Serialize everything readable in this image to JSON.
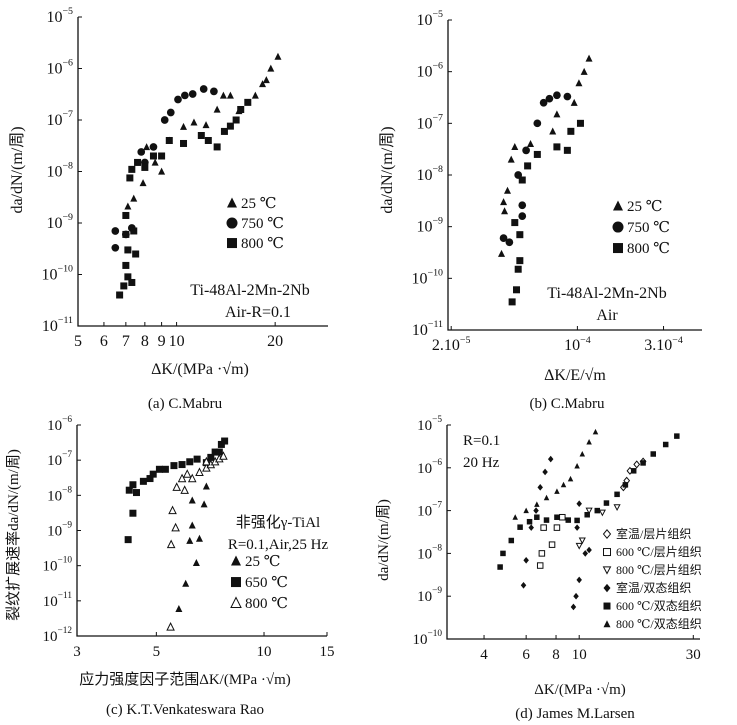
{
  "chart_data": [
    {
      "id": "a",
      "type": "scatter",
      "caption": "(a) C.Mabru",
      "xlabel": "ΔK/(MPa ·√m)",
      "ylabel": "da/dN/(m/周)",
      "xscale": "log",
      "yscale": "log",
      "xlim": [
        5,
        29
      ],
      "ylim": [
        1e-11,
        1e-05
      ],
      "xticks": [
        {
          "v": 5,
          "base": "5"
        },
        {
          "v": 6,
          "base": "6"
        },
        {
          "v": 7,
          "base": "7"
        },
        {
          "v": 8,
          "base": "8"
        },
        {
          "v": 9,
          "base": "9"
        },
        {
          "v": 10,
          "base": "10"
        },
        {
          "v": 20,
          "base": "20"
        }
      ],
      "yticks": [
        -11,
        -10,
        -9,
        -8,
        -7,
        -6,
        -5
      ],
      "annotations": [
        "Ti-48Al-2Mn-2Nb",
        "Air-R=0.1"
      ],
      "legend_position": "center-right",
      "series": [
        {
          "name": "25 ℃",
          "marker": "triangle-filled",
          "points": [
            [
              7.1,
              2.1e-09
            ],
            [
              7.4,
              3e-09
            ],
            [
              7.9,
              6e-09
            ],
            [
              8.1,
              3e-08
            ],
            [
              8.6,
              1.5e-08
            ],
            [
              9,
              1e-08
            ],
            [
              9.5,
              4e-08
            ],
            [
              10.5,
              7.4e-08
            ],
            [
              11.3,
              9e-08
            ],
            [
              12.3,
              8e-08
            ],
            [
              13.3,
              1.6e-07
            ],
            [
              13.9,
              3e-07
            ],
            [
              14.6,
              3e-07
            ],
            [
              15.5,
              1.5e-07
            ],
            [
              17.4,
              3e-07
            ],
            [
              18.3,
              5e-07
            ],
            [
              18.8,
              6e-07
            ],
            [
              19.4,
              1e-06
            ],
            [
              20.4,
              1.7e-06
            ]
          ]
        },
        {
          "name": "750 ℃",
          "marker": "circle-filled",
          "points": [
            [
              6.5,
              7e-10
            ],
            [
              6.5,
              3.3e-10
            ],
            [
              7.0,
              6e-10
            ],
            [
              7.3,
              8e-10
            ],
            [
              7.8,
              2.4e-08
            ],
            [
              8.0,
              1.5e-08
            ],
            [
              8.5,
              3e-08
            ],
            [
              9.2,
              1e-07
            ],
            [
              9.6,
              1.4e-07
            ],
            [
              10.1,
              2.5e-07
            ],
            [
              10.6,
              3e-07
            ],
            [
              11.2,
              3.2e-07
            ],
            [
              12.1,
              4e-07
            ],
            [
              13,
              3.6e-07
            ]
          ]
        },
        {
          "name": "800 ℃",
          "marker": "square-filled",
          "points": [
            [
              6.7,
              4e-11
            ],
            [
              6.9,
              6e-11
            ],
            [
              7.1,
              9e-11
            ],
            [
              7.3,
              7e-11
            ],
            [
              7.0,
              1.5e-10
            ],
            [
              7.1,
              3e-10
            ],
            [
              7.5,
              2.5e-10
            ],
            [
              7.0,
              6e-10
            ],
            [
              7.4,
              7e-10
            ],
            [
              7.0,
              1.4e-09
            ],
            [
              7.2,
              7.5e-09
            ],
            [
              7.3,
              1.1e-08
            ],
            [
              7.6,
              1.5e-08
            ],
            [
              8,
              1.2e-08
            ],
            [
              8.5,
              2e-08
            ],
            [
              9,
              2e-08
            ],
            [
              9.5,
              4e-08
            ],
            [
              10.5,
              3.5e-08
            ],
            [
              11.9,
              5e-08
            ],
            [
              12.5,
              4e-08
            ],
            [
              13.3,
              3e-08
            ],
            [
              14.0,
              6e-08
            ],
            [
              14.6,
              7.6e-08
            ],
            [
              15.2,
              1e-07
            ],
            [
              15.7,
              1.6e-07
            ],
            [
              16.5,
              2.2e-07
            ]
          ]
        }
      ]
    },
    {
      "id": "b",
      "type": "scatter",
      "caption": "(b) C.Mabru",
      "xlabel": "ΔK/E/√m",
      "ylabel": "da/dN/(m/周)",
      "xscale": "log",
      "yscale": "log",
      "xlim": [
        1.92e-05,
        0.00049
      ],
      "ylim": [
        1e-11,
        1e-05
      ],
      "xticks": [
        {
          "v": 2e-05,
          "base": "2.10",
          "sup": "-5"
        },
        {
          "v": 0.0001,
          "base": "10",
          "sup": "-4"
        },
        {
          "v": 0.0003,
          "base": "3.10",
          "sup": "-4"
        }
      ],
      "yticks": [
        -11,
        -10,
        -9,
        -8,
        -7,
        -6,
        -5
      ],
      "annotations": [
        "Ti-48Al-2Mn-2Nb",
        "Air"
      ],
      "legend_position": "center-right",
      "series": [
        {
          "name": "25 ℃",
          "marker": "triangle-filled",
          "points": [
            [
              3.8e-05,
              3e-10
            ],
            [
              3.9e-05,
              3e-09
            ],
            [
              3.95e-05,
              2e-09
            ],
            [
              4.1e-05,
              5e-09
            ],
            [
              4.3e-05,
              2e-08
            ],
            [
              4.5e-05,
              3.5e-08
            ],
            [
              5.5e-05,
              4e-08
            ],
            [
              7.3e-05,
              7e-08
            ],
            [
              7.7e-05,
              1.5e-07
            ],
            [
              9.6e-05,
              2.5e-07
            ],
            [
              0.000102,
              6e-07
            ],
            [
              0.000109,
              1e-06
            ],
            [
              0.000116,
              1.8e-06
            ]
          ]
        },
        {
          "name": "750 ℃",
          "marker": "circle-filled",
          "points": [
            [
              3.9e-05,
              6e-10
            ],
            [
              4.2e-05,
              5e-10
            ],
            [
              4.95e-05,
              1.6e-09
            ],
            [
              4.95e-05,
              2.6e-09
            ],
            [
              4.7e-05,
              1e-08
            ],
            [
              5.2e-05,
              3e-08
            ],
            [
              6e-05,
              1e-07
            ],
            [
              6.5e-05,
              2.5e-07
            ],
            [
              7e-05,
              3e-07
            ],
            [
              7.7e-05,
              3.5e-07
            ],
            [
              8.8e-05,
              3.3e-07
            ]
          ]
        },
        {
          "name": "800 ℃",
          "marker": "square-filled",
          "points": [
            [
              4.35e-05,
              3.5e-11
            ],
            [
              4.6e-05,
              6e-11
            ],
            [
              4.7e-05,
              1.5e-10
            ],
            [
              4.8e-05,
              2.2e-10
            ],
            [
              4.5e-05,
              1.2e-09
            ],
            [
              4.8e-05,
              7e-10
            ],
            [
              4.95e-05,
              8e-09
            ],
            [
              5.3e-05,
              1.5e-08
            ],
            [
              6e-05,
              2.5e-08
            ],
            [
              7.7e-05,
              3.5e-08
            ],
            [
              8.8e-05,
              3e-08
            ],
            [
              9.2e-05,
              7e-08
            ],
            [
              0.000104,
              1e-07
            ]
          ]
        }
      ]
    },
    {
      "id": "c",
      "type": "scatter",
      "caption": "(c) K.T.Venkateswara Rao",
      "xlabel": "应力强度因子范围ΔK/(MPa ·√m)",
      "ylabel": "裂纹扩展速率da/dN/(m/周)",
      "xscale": "log",
      "yscale": "log",
      "xlim": [
        3,
        15
      ],
      "ylim": [
        1e-12,
        1e-06
      ],
      "xticks": [
        {
          "v": 3,
          "base": "3"
        },
        {
          "v": 5,
          "base": "5"
        },
        {
          "v": 10,
          "base": "10"
        },
        {
          "v": 15,
          "base": "15"
        }
      ],
      "yticks": [
        -12,
        -11,
        -10,
        -9,
        -8,
        -7,
        -6
      ],
      "annotations": [
        "非强化γ-TiAl",
        "R=0.1,Air,25 Hz"
      ],
      "legend_position": "lower-right",
      "series": [
        {
          "name": "25 ℃",
          "marker": "triangle-filled",
          "points": [
            [
              5.78,
              5.9e-12
            ],
            [
              6.04,
              3.1e-11
            ],
            [
              6.47,
              1.2e-10
            ],
            [
              6.2,
              5.1e-10
            ],
            [
              6.6,
              5.9e-10
            ],
            [
              6.3,
              1.4e-09
            ],
            [
              6.3,
              7.2e-09
            ],
            [
              6.8,
              5.6e-09
            ],
            [
              6.9,
              1.8e-08
            ]
          ]
        },
        {
          "name": "650 ℃",
          "marker": "square-filled",
          "points": [
            [
              4.17,
              5.5e-10
            ],
            [
              4.3,
              3.1e-09
            ],
            [
              4.2,
              1.4e-08
            ],
            [
              4.3,
              2e-08
            ],
            [
              4.4,
              1.2e-08
            ],
            [
              4.6,
              2.5e-08
            ],
            [
              4.8,
              3e-08
            ],
            [
              4.9,
              4e-08
            ],
            [
              5.1,
              5.5e-08
            ],
            [
              5.3,
              5.5e-08
            ],
            [
              5.6,
              7e-08
            ],
            [
              5.9,
              7.5e-08
            ],
            [
              6.2,
              9e-08
            ],
            [
              6.5,
              1.07e-07
            ],
            [
              6.9,
              8.5e-08
            ],
            [
              7.1,
              1.2e-07
            ],
            [
              7.3,
              1.7e-07
            ],
            [
              7.5,
              1.7e-07
            ],
            [
              7.6,
              2.8e-07
            ],
            [
              7.76,
              3.5e-07
            ]
          ]
        },
        {
          "name": "800 ℃",
          "marker": "triangle-open",
          "points": [
            [
              5.48,
              1.8e-12
            ],
            [
              5.5,
              4e-10
            ],
            [
              5.66,
              1.2e-09
            ],
            [
              5.55,
              3.7e-09
            ],
            [
              6.0,
              1.4e-08
            ],
            [
              5.7,
              1.7e-08
            ],
            [
              5.9,
              3e-08
            ],
            [
              6.1,
              4e-08
            ],
            [
              6.3,
              3e-08
            ],
            [
              6.6,
              4.5e-08
            ],
            [
              6.9,
              6e-08
            ],
            [
              7.1,
              7.5e-08
            ],
            [
              7.3,
              9e-08
            ],
            [
              7.5,
              1.1e-07
            ],
            [
              7.7,
              1.3e-07
            ],
            [
              6.9,
              9e-08
            ]
          ]
        }
      ]
    },
    {
      "id": "d",
      "type": "scatter",
      "caption": "(d) James M.Larsen",
      "xlabel": "ΔK/(MPa ·√m)",
      "ylabel": "da/dN/(m/周)",
      "xscale": "log",
      "yscale": "log",
      "xlim": [
        2.8,
        32
      ],
      "ylim": [
        1e-10,
        1e-05
      ],
      "xticks": [
        {
          "v": 4,
          "base": "4"
        },
        {
          "v": 6,
          "base": "6"
        },
        {
          "v": 8,
          "base": "8"
        },
        {
          "v": 10,
          "base": "10"
        },
        {
          "v": 30,
          "base": "30"
        }
      ],
      "yticks": [
        -10,
        -9,
        -8,
        -7,
        -6,
        -5
      ],
      "annotations": [
        "R=0.1",
        "20 Hz"
      ],
      "legend_position": "center-right",
      "series": [
        {
          "name": "室温/层片组织",
          "marker": "diamond-open",
          "points": [
            [
              15.3,
              3.5e-07
            ],
            [
              15.8,
              5e-07
            ],
            [
              16.3,
              8.5e-07
            ],
            [
              17.4,
              1.2e-06
            ],
            [
              18.5,
              1.4e-06
            ]
          ]
        },
        {
          "name": "600 ℃/层片组织",
          "marker": "square-open",
          "points": [
            [
              6.87,
              5.2e-09
            ],
            [
              6.98,
              1e-08
            ],
            [
              7.1,
              4e-08
            ],
            [
              7.7,
              1.6e-08
            ],
            [
              8.07,
              4e-08
            ],
            [
              8.5,
              7e-08
            ]
          ]
        },
        {
          "name": "800 ℃/层片组织",
          "marker": "triangle-down-open",
          "points": [
            [
              10,
              1.5e-08
            ],
            [
              10.3,
              2e-08
            ],
            [
              11,
              1e-07
            ],
            [
              12.5,
              9e-08
            ],
            [
              14.4,
              1.2e-07
            ]
          ]
        },
        {
          "name": "室温/双态组织",
          "marker": "diamond-filled",
          "points": [
            [
              5.85,
              1.8e-09
            ],
            [
              6.0,
              6.9e-09
            ],
            [
              6.3,
              4e-08
            ],
            [
              6.6,
              1e-07
            ],
            [
              6.87,
              3.5e-07
            ],
            [
              7.2,
              8e-07
            ],
            [
              7.6,
              1.6e-06
            ],
            [
              9.46,
              5.6e-10
            ],
            [
              9.7,
              1e-09
            ],
            [
              10,
              2.4e-09
            ],
            [
              10.6,
              1e-08
            ],
            [
              11,
              1.2e-08
            ],
            [
              9.8,
              4e-08
            ],
            [
              10,
              1.45e-07
            ]
          ]
        },
        {
          "name": "600 ℃/双态组织",
          "marker": "square-filled",
          "points": [
            [
              4.67,
              4.8e-09
            ],
            [
              4.8,
              1e-08
            ],
            [
              5.2,
              2e-08
            ],
            [
              5.66,
              4.1e-08
            ],
            [
              6.2,
              5.5e-08
            ],
            [
              6.65,
              7e-08
            ],
            [
              7.3,
              6e-08
            ],
            [
              8.07,
              7e-08
            ],
            [
              9,
              6e-08
            ],
            [
              9.8,
              5.9e-08
            ],
            [
              10.8,
              8e-08
            ],
            [
              11.9,
              1e-07
            ],
            [
              13,
              1.5e-07
            ],
            [
              14.4,
              2.4e-07
            ],
            [
              15.6,
              4e-07
            ],
            [
              16.9,
              8.5e-07
            ],
            [
              18.5,
              1.3e-06
            ],
            [
              20.4,
              2.1e-06
            ],
            [
              23,
              3.5e-06
            ],
            [
              25.6,
              5.5e-06
            ]
          ]
        },
        {
          "name": "800 ℃/双态组织",
          "marker": "triangle-filled",
          "points": [
            [
              5.4,
              7e-08
            ],
            [
              6.0,
              1e-07
            ],
            [
              6.65,
              1.4e-07
            ],
            [
              7.3,
              2e-07
            ],
            [
              8.07,
              2.8e-07
            ],
            [
              8.6,
              4e-07
            ],
            [
              9.2,
              5.5e-07
            ],
            [
              9.8,
              1.1e-06
            ],
            [
              10.3,
              2.1e-06
            ],
            [
              11,
              4e-06
            ],
            [
              11.7,
              6.9e-06
            ]
          ]
        }
      ]
    }
  ]
}
